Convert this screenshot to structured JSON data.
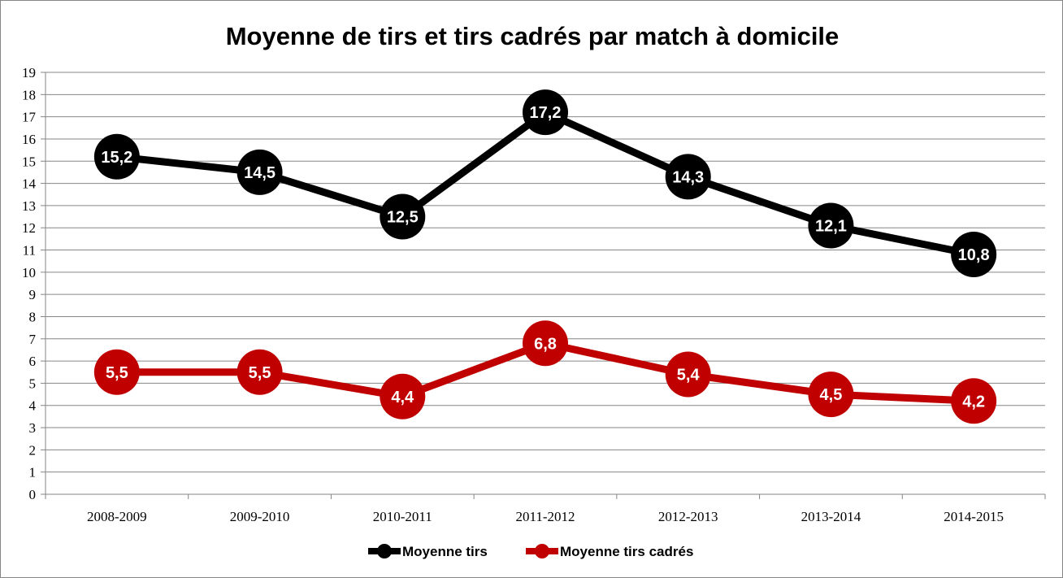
{
  "chart_data": {
    "type": "line",
    "title": "Moyenne de tirs et tirs cadrés par match à domicile",
    "xlabel": "",
    "ylabel": "",
    "categories": [
      "2008-2009",
      "2009-2010",
      "2010-2011",
      "2011-2012",
      "2012-2013",
      "2013-2014",
      "2014-2015"
    ],
    "ylim": [
      0,
      19
    ],
    "yticks": [
      0,
      1,
      2,
      3,
      4,
      5,
      6,
      7,
      8,
      9,
      10,
      11,
      12,
      13,
      14,
      15,
      16,
      17,
      18,
      19
    ],
    "grid": true,
    "legend_position": "bottom",
    "series": [
      {
        "name": "Moyenne tirs",
        "color": "#000000",
        "values": [
          15.2,
          14.5,
          12.5,
          17.2,
          14.3,
          12.1,
          10.8
        ],
        "labels": [
          "15,2",
          "14,5",
          "12,5",
          "17,2",
          "14,3",
          "12,1",
          "10,8"
        ]
      },
      {
        "name": "Moyenne tirs cadrés",
        "color": "#c00000",
        "values": [
          5.5,
          5.5,
          4.4,
          6.8,
          5.4,
          4.5,
          4.2
        ],
        "labels": [
          "5,5",
          "5,5",
          "4,4",
          "6,8",
          "5,4",
          "4,5",
          "4,2"
        ]
      }
    ]
  }
}
